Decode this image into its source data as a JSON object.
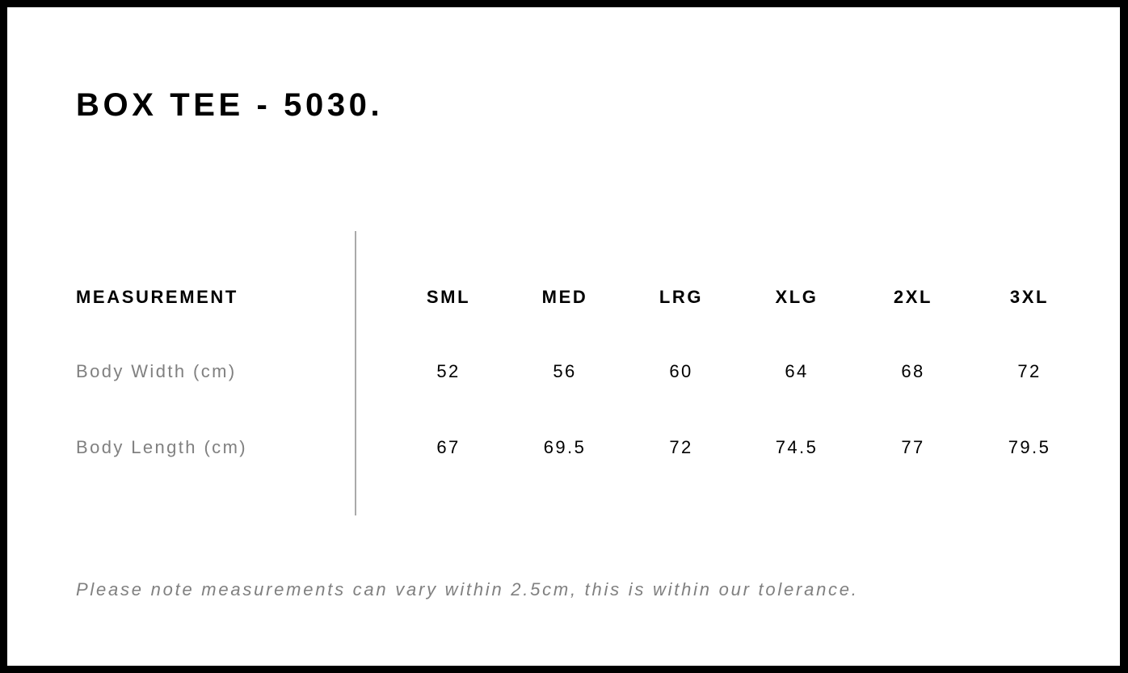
{
  "title": "BOX TEE - 5030.",
  "table": {
    "header_label": "MEASUREMENT",
    "sizes": [
      "SML",
      "MED",
      "LRG",
      "XLG",
      "2XL",
      "3XL"
    ],
    "rows": [
      {
        "label": "Body Width (cm)",
        "values": [
          "52",
          "56",
          "60",
          "64",
          "68",
          "72"
        ]
      },
      {
        "label": "Body Length (cm)",
        "values": [
          "67",
          "69.5",
          "72",
          "74.5",
          "77",
          "79.5"
        ]
      }
    ]
  },
  "note": "Please note measurements can vary within 2.5cm, this is within our tolerance.",
  "colors": {
    "border": "#000000",
    "label_gray": "#808080",
    "divider": "#aaaaaa"
  }
}
